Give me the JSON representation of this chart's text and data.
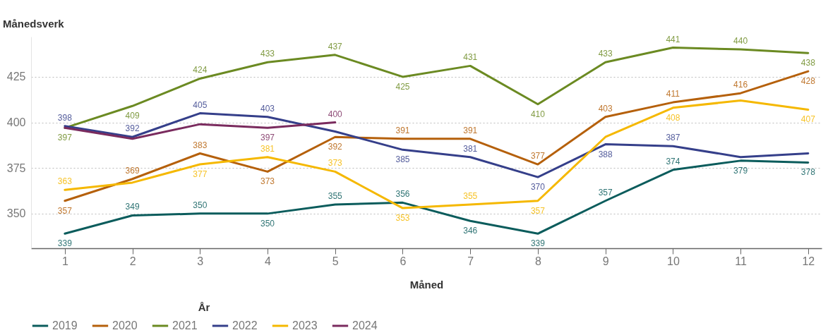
{
  "chart_data": {
    "type": "line",
    "ylabel": "Månedsverk",
    "xlabel": "Måned",
    "legend_title": "År",
    "x": [
      1,
      2,
      3,
      4,
      5,
      6,
      7,
      8,
      9,
      10,
      11,
      12
    ],
    "xlim": [
      0.5,
      12.2
    ],
    "xticks": [
      1,
      2,
      3,
      4,
      5,
      6,
      7,
      8,
      9,
      10,
      11,
      12
    ],
    "ylim": [
      331,
      447
    ],
    "yticks": [
      350,
      375,
      400,
      425
    ],
    "grid": "y",
    "legend": "bottom",
    "line_style": "solid",
    "marker": "none",
    "series": [
      {
        "name": "2019",
        "color": "#0b5c5c",
        "values": [
          339,
          349,
          350,
          350,
          355,
          356,
          346,
          339,
          357,
          374,
          379,
          378
        ],
        "value_labels": [
          "339",
          "349",
          "350",
          "350",
          "355",
          "356",
          "346",
          "339",
          "357",
          "374",
          "379",
          "378"
        ]
      },
      {
        "name": "2020",
        "color": "#b5600b",
        "values": [
          357,
          369,
          383,
          373,
          392,
          391,
          391,
          377,
          403,
          411,
          416,
          428
        ],
        "value_labels": [
          "357",
          "369",
          "383",
          "373",
          "392",
          "391",
          "391",
          "377",
          "403",
          "411",
          "416",
          "428"
        ]
      },
      {
        "name": "2021",
        "color": "#6b8a22",
        "values": [
          397,
          409,
          424,
          433,
          437,
          425,
          431,
          410,
          433,
          441,
          440,
          438
        ],
        "value_labels": [
          "397",
          "409",
          "424",
          "433",
          "437",
          "425",
          "431",
          "410",
          "433",
          "441",
          "440",
          "438"
        ]
      },
      {
        "name": "2022",
        "color": "#353f8a",
        "values": [
          398,
          392,
          405,
          403,
          395,
          385,
          381,
          370,
          388,
          387,
          381,
          383
        ],
        "value_labels": [
          "398",
          "392",
          "405",
          "403",
          null,
          "385",
          "381",
          "370",
          "388",
          "387",
          null,
          null
        ]
      },
      {
        "name": "2023",
        "color": "#f5b800",
        "values": [
          363,
          367,
          377,
          381,
          373,
          353,
          355,
          357,
          392,
          408,
          412,
          407
        ],
        "value_labels": [
          "363",
          null,
          "377",
          "381",
          "373",
          "353",
          "355",
          "357",
          null,
          "408",
          null,
          "407"
        ]
      },
      {
        "name": "2024",
        "color": "#7a2b5e",
        "values": [
          397,
          391,
          399,
          397,
          400,
          null,
          null,
          null,
          null,
          null,
          null,
          null
        ],
        "value_labels": [
          null,
          null,
          null,
          "397",
          "400",
          null,
          null,
          null,
          null,
          null,
          null,
          null
        ]
      }
    ]
  }
}
